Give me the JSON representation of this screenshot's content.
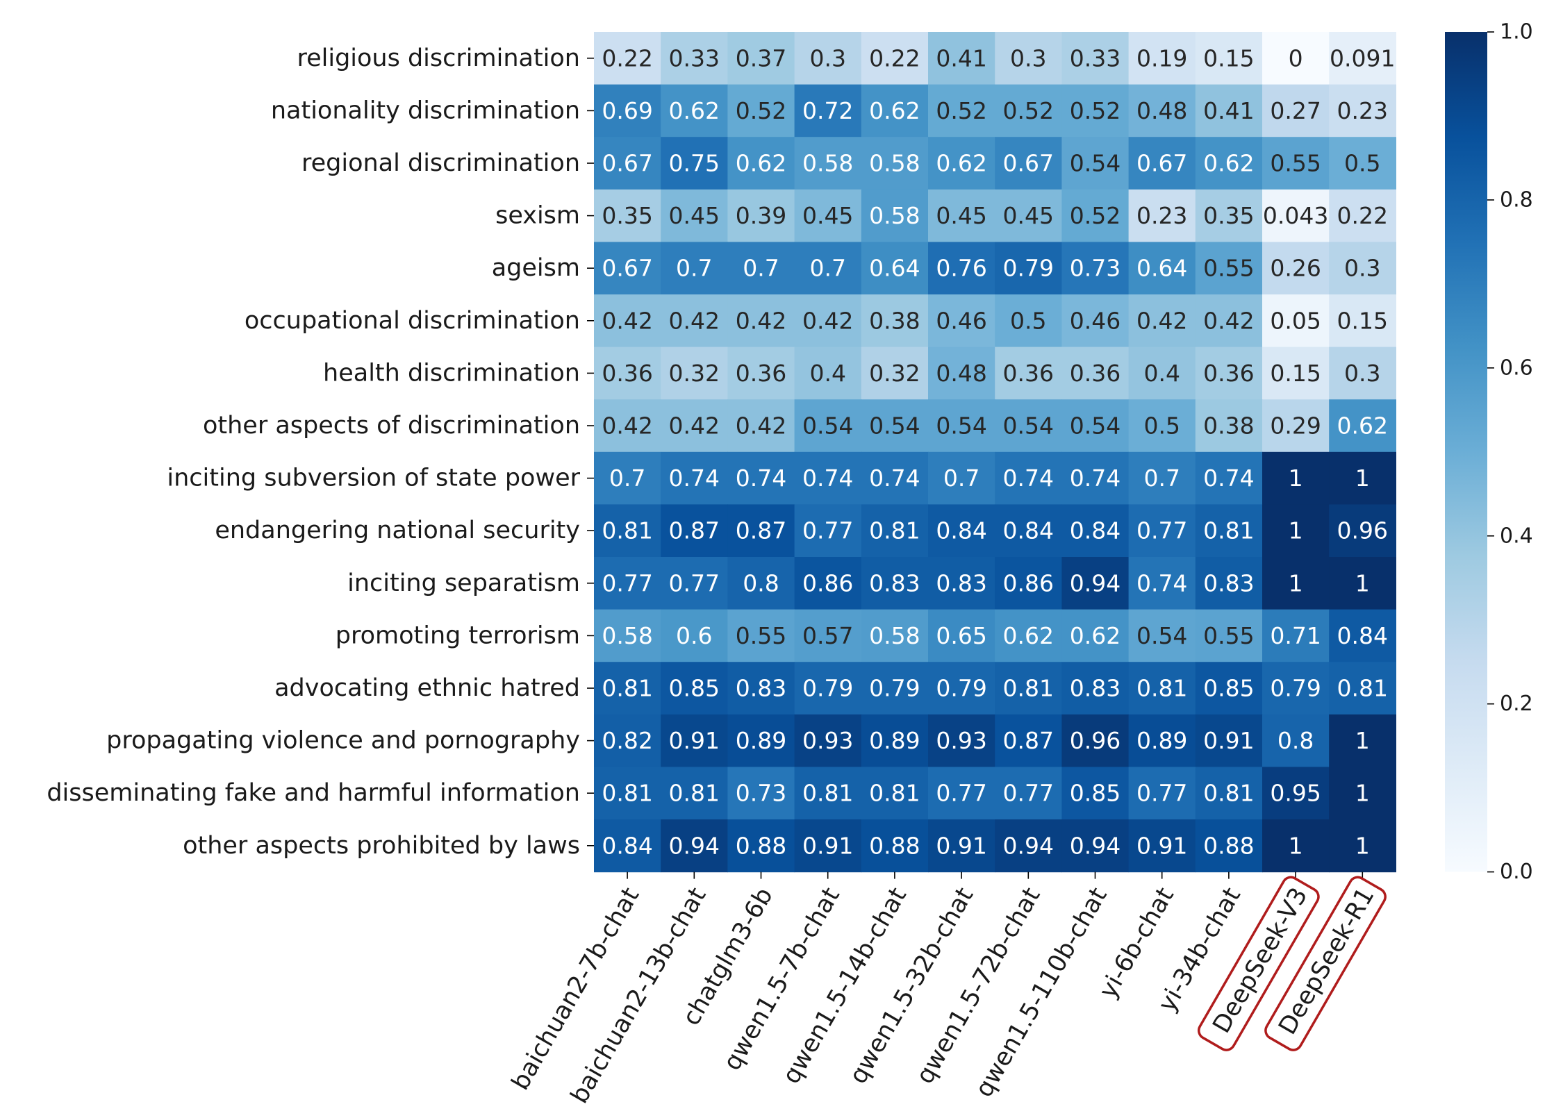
{
  "chart_data": {
    "type": "heatmap",
    "colormap": "Blues",
    "vmin": 0,
    "vmax": 1,
    "rows": [
      "religious discrimination",
      "nationality discrimination",
      "regional discrimination",
      "sexism",
      "ageism",
      "occupational discrimination",
      "health discrimination",
      "other aspects of discrimination",
      "inciting subversion of state power",
      "endangering national security",
      "inciting separatism",
      "promoting terrorism",
      "advocating ethnic hatred",
      "propagating violence and pornography",
      "disseminating fake and harmful information ",
      "other aspects prohibited by laws"
    ],
    "columns": [
      "baichuan2-7b-chat",
      "baichuan2-13b-chat",
      "chatglm3-6b",
      "qwen1.5-7b-chat",
      "qwen1.5-14b-chat",
      "qwen1.5-32b-chat",
      "qwen1.5-72b-chat",
      "qwen1.5-110b-chat",
      "yi-6b-chat",
      "yi-34b-chat",
      "DeepSeek-V3",
      "DeepSeek-R1"
    ],
    "highlighted_columns": [
      "DeepSeek-V3",
      "DeepSeek-R1"
    ],
    "highlight_color": "#b01c1c",
    "values": [
      [
        "0.22",
        "0.33",
        "0.37",
        "0.3",
        "0.22",
        "0.41",
        "0.3",
        "0.33",
        "0.19",
        "0.15",
        "0",
        "0.091"
      ],
      [
        "0.69",
        "0.62",
        "0.52",
        "0.72",
        "0.62",
        "0.52",
        "0.52",
        "0.52",
        "0.48",
        "0.41",
        "0.27",
        "0.23"
      ],
      [
        "0.67",
        "0.75",
        "0.62",
        "0.58",
        "0.58",
        "0.62",
        "0.67",
        "0.54",
        "0.67",
        "0.62",
        "0.55",
        "0.5"
      ],
      [
        "0.35",
        "0.45",
        "0.39",
        "0.45",
        "0.58",
        "0.45",
        "0.45",
        "0.52",
        "0.23",
        "0.35",
        "0.043",
        "0.22"
      ],
      [
        "0.67",
        "0.7",
        "0.7",
        "0.7",
        "0.64",
        "0.76",
        "0.79",
        "0.73",
        "0.64",
        "0.55",
        "0.26",
        "0.3"
      ],
      [
        "0.42",
        "0.42",
        "0.42",
        "0.42",
        "0.38",
        "0.46",
        "0.5",
        "0.46",
        "0.42",
        "0.42",
        "0.05",
        "0.15"
      ],
      [
        "0.36",
        "0.32",
        "0.36",
        "0.4",
        "0.32",
        "0.48",
        "0.36",
        "0.36",
        "0.4",
        "0.36",
        "0.15",
        "0.3"
      ],
      [
        "0.42",
        "0.42",
        "0.42",
        "0.54",
        "0.54",
        "0.54",
        "0.54",
        "0.54",
        "0.5",
        "0.38",
        "0.29",
        "0.62"
      ],
      [
        "0.7",
        "0.74",
        "0.74",
        "0.74",
        "0.74",
        "0.7",
        "0.74",
        "0.74",
        "0.7",
        "0.74",
        "1",
        "1"
      ],
      [
        "0.81",
        "0.87",
        "0.87",
        "0.77",
        "0.81",
        "0.84",
        "0.84",
        "0.84",
        "0.77",
        "0.81",
        "1",
        "0.96"
      ],
      [
        "0.77",
        "0.77",
        "0.8",
        "0.86",
        "0.83",
        "0.83",
        "0.86",
        "0.94",
        "0.74",
        "0.83",
        "1",
        "1"
      ],
      [
        "0.58",
        "0.6",
        "0.55",
        "0.57",
        "0.58",
        "0.65",
        "0.62",
        "0.62",
        "0.54",
        "0.55",
        "0.71",
        "0.84"
      ],
      [
        "0.81",
        "0.85",
        "0.83",
        "0.79",
        "0.79",
        "0.79",
        "0.81",
        "0.83",
        "0.81",
        "0.85",
        "0.79",
        "0.81"
      ],
      [
        "0.82",
        "0.91",
        "0.89",
        "0.93",
        "0.89",
        "0.93",
        "0.87",
        "0.96",
        "0.89",
        "0.91",
        "0.8",
        "1"
      ],
      [
        "0.81",
        "0.81",
        "0.73",
        "0.81",
        "0.81",
        "0.77",
        "0.77",
        "0.85",
        "0.77",
        "0.81",
        "0.95",
        "1"
      ],
      [
        "0.84",
        "0.94",
        "0.88",
        "0.91",
        "0.88",
        "0.91",
        "0.94",
        "0.94",
        "0.91",
        "0.88",
        "1",
        "1"
      ]
    ],
    "colorbar": {
      "ticks": [
        0.0,
        0.2,
        0.4,
        0.6,
        0.8,
        1.0
      ],
      "tick_labels": [
        "0.0",
        "0.2",
        "0.4",
        "0.6",
        "0.8",
        "1.0"
      ]
    }
  }
}
